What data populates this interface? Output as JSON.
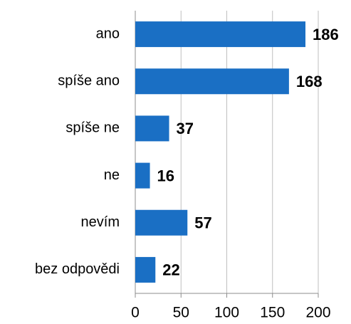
{
  "chart_data": {
    "type": "bar",
    "orientation": "horizontal",
    "categories": [
      "ano",
      "spíše ano",
      "spíše ne",
      "ne",
      "nevím",
      "bez odpovědi"
    ],
    "values": [
      186,
      168,
      37,
      16,
      57,
      22
    ],
    "color": "#1a6fc4",
    "xlim": [
      0,
      200
    ],
    "xticks": [
      0,
      50,
      100,
      150,
      200
    ],
    "grid": true
  }
}
